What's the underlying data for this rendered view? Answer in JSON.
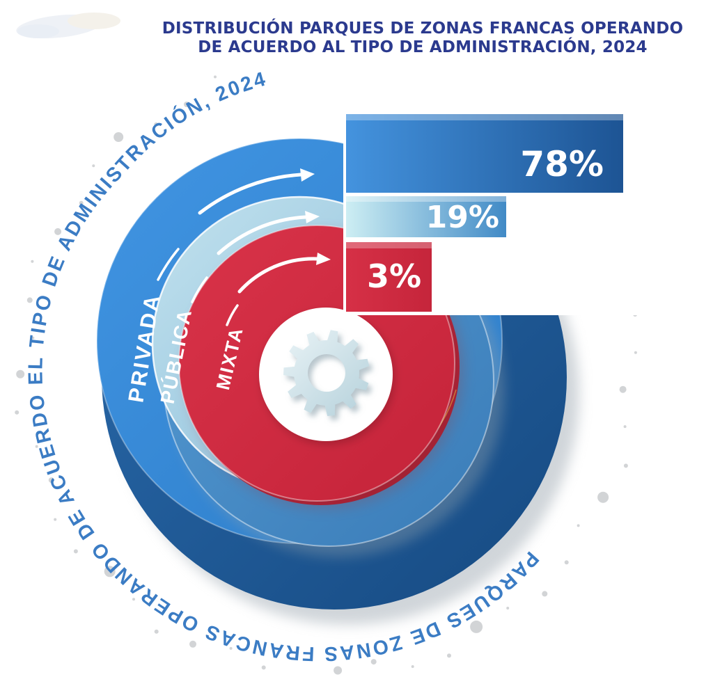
{
  "title": {
    "line1": "DISTRIBUCIÓN PARQUES DE ZONAS FRANCAS OPERANDO",
    "line2": "DE ACUERDO AL TIPO DE ADMINISTRACIÓN, 2024"
  },
  "circular_caption": "PARQUES DE ZONAS FRANCAS OPERANDO DE ACUERDO EL TIPO DE ADMINISTRACIÓN, 2024",
  "rings": [
    {
      "label": "PRIVADA",
      "value": "78%",
      "color": "#3b8cd9"
    },
    {
      "label": "PÚBLICA",
      "value": "19%",
      "color": "#a9cfe2"
    },
    {
      "label": "MIXTA",
      "value": "3%",
      "color": "#d53045"
    }
  ],
  "center_icon": "gear-icon",
  "colors": {
    "title_text": "#2b3a8e",
    "caption_text": "#3b7cc4",
    "bar_privada_start": "#4493de",
    "bar_privada_end": "#1d5494",
    "bar_publica_start": "#cdeef3",
    "bar_publica_end": "#418ac6",
    "bar_mixta": "#d02b41",
    "outer_ring_face": "#3b8cd9",
    "outer_ring_side": "#1d5695",
    "middle_ring_face": "#a9cfe2",
    "middle_ring_side": "#4a90c9",
    "inner_ring_face": "#d53045",
    "inner_ring_side": "#b32840",
    "dots": "#d2d4d6",
    "gear": "#c9dde6"
  },
  "chart_data": {
    "type": "bar",
    "title": "DISTRIBUCIÓN PARQUES DE ZONAS FRANCAS OPERANDO DE ACUERDO AL TIPO DE ADMINISTRACIÓN, 2024",
    "categories": [
      "PRIVADA",
      "PÚBLICA",
      "MIXTA"
    ],
    "values": [
      78,
      19,
      3
    ],
    "unit": "%",
    "xlabel": "",
    "ylabel": "",
    "xlim": [
      0,
      100
    ],
    "grid": false,
    "legend_position": "none",
    "annotations": [
      "78%",
      "19%",
      "3%"
    ]
  }
}
